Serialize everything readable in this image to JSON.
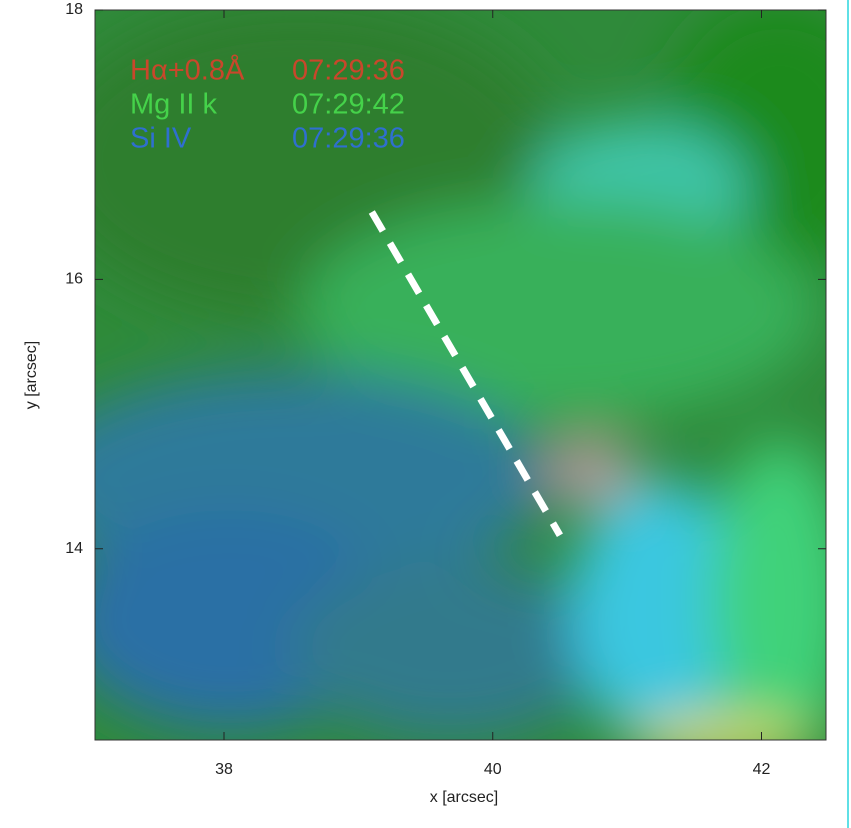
{
  "chart_data": {
    "type": "image",
    "xlabel": "x [arcsec]",
    "ylabel": "y [arcsec]",
    "xlim": [
      37.04,
      42.48
    ],
    "ylim": [
      12.58,
      18.0
    ],
    "xticks": [
      38,
      40,
      42
    ],
    "yticks": [
      14,
      16,
      18
    ],
    "channels": [
      {
        "name": "Hα+0.8Å",
        "time": "07:29:36",
        "color": "#c9472b"
      },
      {
        "name": "Mg II k",
        "time": "07:29:42",
        "color": "#45d24a"
      },
      {
        "name": "Si IV",
        "time": "07:29:36",
        "color": "#2f6fcf"
      }
    ],
    "slit": {
      "x": [
        39.1,
        40.5
      ],
      "y": [
        16.5,
        14.1
      ],
      "color": "#ffffff"
    }
  }
}
